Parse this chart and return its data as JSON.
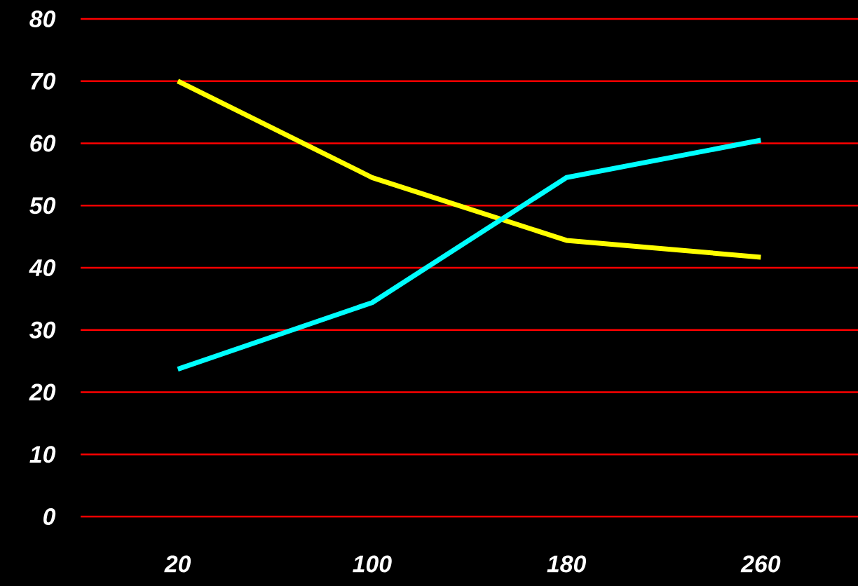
{
  "chart_data": {
    "type": "line",
    "categories": [
      "20",
      "100",
      "180",
      "260"
    ],
    "series": [
      {
        "color": "#ffff00",
        "values": [
          70,
          54.5,
          44.4,
          41.7
        ]
      },
      {
        "color": "#00ffff",
        "values": [
          23.7,
          34.4,
          54.5,
          60.5
        ]
      }
    ],
    "ylim": [
      0,
      80
    ],
    "yticks": [
      0,
      10,
      20,
      30,
      40,
      50,
      60,
      70,
      80
    ],
    "grid": "y",
    "marker": "none",
    "line_style": "solid"
  }
}
